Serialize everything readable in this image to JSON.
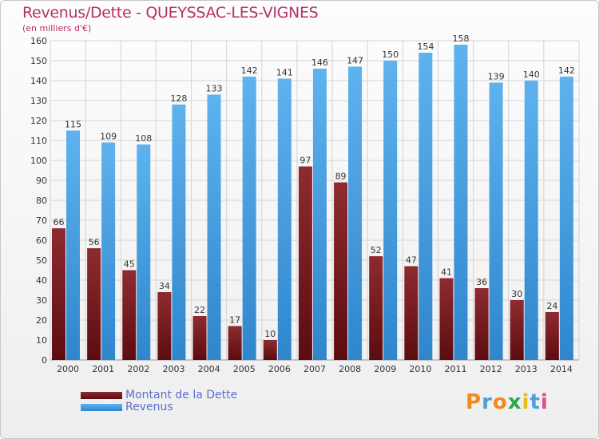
{
  "chart_data": {
    "type": "bar",
    "title": "Revenus/Dette - QUEYSSAC-LES-VIGNES",
    "subtitle": "(en milliers d'€)",
    "categories": [
      "2000",
      "2001",
      "2002",
      "2003",
      "2004",
      "2005",
      "2006",
      "2007",
      "2008",
      "2009",
      "2010",
      "2011",
      "2012",
      "2013",
      "2014"
    ],
    "series": [
      {
        "name": "Montant de la Dette",
        "color": "#7a1e22",
        "values": [
          66,
          56,
          45,
          34,
          22,
          17,
          10,
          97,
          89,
          52,
          47,
          41,
          36,
          30,
          24
        ]
      },
      {
        "name": "Revenus",
        "color": "#4aa3e6",
        "values": [
          115,
          109,
          108,
          128,
          133,
          142,
          141,
          146,
          147,
          150,
          154,
          158,
          139,
          140,
          142
        ]
      }
    ],
    "yticks": [
      0,
      10,
      20,
      30,
      40,
      50,
      60,
      70,
      80,
      90,
      100,
      110,
      120,
      130,
      140,
      150,
      160
    ],
    "ylim": [
      0,
      160
    ],
    "grid": true,
    "legend_position": "bottom-left"
  },
  "logo": {
    "letters": [
      {
        "char": "P",
        "color": "#f08a1c"
      },
      {
        "char": "r",
        "color": "#4ea0dc"
      },
      {
        "char": "o",
        "color": "#f08a1c"
      },
      {
        "char": "x",
        "color": "#2aa84a"
      },
      {
        "char": "i",
        "color": "#e0c020"
      },
      {
        "char": "t",
        "color": "#4ea0dc"
      },
      {
        "char": "i",
        "color": "#e04c8c"
      }
    ]
  }
}
